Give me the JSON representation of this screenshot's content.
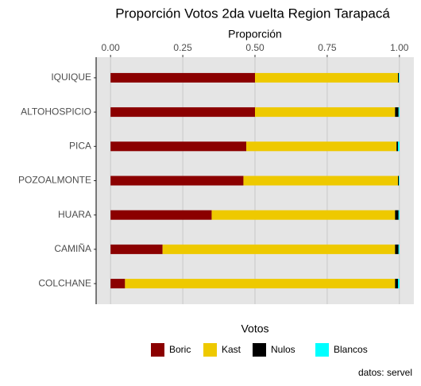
{
  "chart_data": {
    "type": "stacked_bar_horizontal",
    "title": "Proporción Votos 2da vuelta Region Tarapacá",
    "x_label": "Proporción",
    "legend_title": "Votos",
    "caption": "datos: servel",
    "categories": [
      "IQUIQUE",
      "ALTOHOSPICIO",
      "PICA",
      "POZOALMONTE",
      "HUARA",
      "CAMIÑA",
      "COLCHANE"
    ],
    "series": [
      {
        "name": "Boric",
        "color": "#8b0000",
        "values": [
          0.5,
          0.5,
          0.47,
          0.46,
          0.35,
          0.18,
          0.05
        ]
      },
      {
        "name": "Kast",
        "color": "#eec900",
        "values": [
          0.495,
          0.485,
          0.52,
          0.535,
          0.635,
          0.805,
          0.935
        ]
      },
      {
        "name": "Nulos",
        "color": "#000000",
        "values": [
          0.003,
          0.012,
          0.005,
          0.003,
          0.012,
          0.012,
          0.01
        ]
      },
      {
        "name": "Blancos",
        "color": "#00ffff",
        "values": [
          0.002,
          0.003,
          0.005,
          0.002,
          0.003,
          0.003,
          0.005
        ]
      }
    ],
    "xlim": [
      -0.05,
      1.05
    ],
    "xticks": [
      {
        "value": 0,
        "label": "0.00"
      },
      0.25,
      {
        "value": 0.5,
        "label": "0.50"
      },
      0.75,
      {
        "value": 1,
        "label": "1.00"
      }
    ],
    "grid": true,
    "legend_position": "bottom"
  }
}
